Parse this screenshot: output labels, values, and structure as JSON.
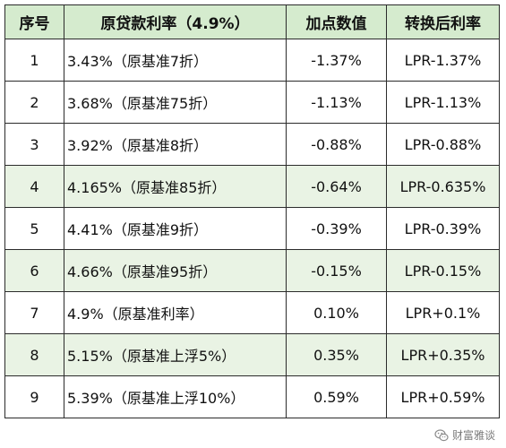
{
  "table": {
    "headers": [
      "序号",
      "原贷款利率（4.9%）",
      "加点数值",
      "转换后利率"
    ],
    "rows": [
      {
        "index": "1",
        "loan_rate": "3.43%（原基准7折）",
        "add_points": "-1.37%",
        "converted": "LPR-1.37%",
        "highlight": false
      },
      {
        "index": "2",
        "loan_rate": "3.68%（原基准75折）",
        "add_points": "-1.13%",
        "converted": "LPR-1.13%",
        "highlight": false
      },
      {
        "index": "3",
        "loan_rate": "3.92%（原基准8折）",
        "add_points": "-0.88%",
        "converted": "LPR-0.88%",
        "highlight": false
      },
      {
        "index": "4",
        "loan_rate": "4.165%（原基准85折）",
        "add_points": "-0.64%",
        "converted": "LPR-0.635%",
        "highlight": true
      },
      {
        "index": "5",
        "loan_rate": "4.41%（原基准9折）",
        "add_points": "-0.39%",
        "converted": "LPR-0.39%",
        "highlight": false
      },
      {
        "index": "6",
        "loan_rate": "4.66%（原基准95折）",
        "add_points": "-0.15%",
        "converted": "LPR-0.15%",
        "highlight": true
      },
      {
        "index": "7",
        "loan_rate": "4.9%（原基准利率）",
        "add_points": "0.10%",
        "converted": "LPR+0.1%",
        "highlight": false
      },
      {
        "index": "8",
        "loan_rate": "5.15%（原基准上浮5%）",
        "add_points": "0.35%",
        "converted": "LPR+0.35%",
        "highlight": true
      },
      {
        "index": "9",
        "loan_rate": "5.39%（原基准上浮10%）",
        "add_points": "0.59%",
        "converted": "LPR+0.59%",
        "highlight": false
      }
    ]
  },
  "watermark": {
    "text": "财富雅谈",
    "icon": "wechat-icon"
  },
  "colors": {
    "header_bg": "#d5ebce",
    "highlight_row_bg": "#e9f3e4",
    "border": "#2b2b2b"
  }
}
